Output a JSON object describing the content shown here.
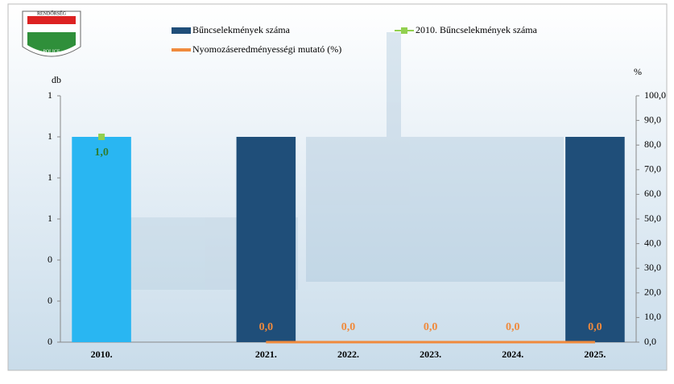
{
  "logo": {
    "top": "RENDŐRSÉG",
    "bottom": "POLICE"
  },
  "chart_data": {
    "type": "combo",
    "categories": [
      "2010.",
      null,
      "2021.",
      "2022.",
      "2023.",
      "2024.",
      "2025."
    ],
    "y_label": "db",
    "y2_label": "%",
    "ylim": [
      0,
      1.2
    ],
    "yticks": [
      0,
      {
        "value": 0.2,
        "label": "0"
      },
      {
        "value": 0.4,
        "label": "0"
      },
      {
        "value": 0.6,
        "label": "1"
      },
      {
        "value": 0.8,
        "label": "1"
      },
      1,
      {
        "value": 1.2,
        "label": "1"
      }
    ],
    "y2lim": [
      0,
      100
    ],
    "y2ticks": [
      {
        "value": 0,
        "label": "0,0"
      },
      {
        "value": 10,
        "label": "10,0"
      },
      {
        "value": 20,
        "label": "20,0"
      },
      {
        "value": 30,
        "label": "30,0"
      },
      {
        "value": 40,
        "label": "40,0"
      },
      {
        "value": 50,
        "label": "50,0"
      },
      {
        "value": 60,
        "label": "60,0"
      },
      {
        "value": 70,
        "label": "70,0"
      },
      {
        "value": 80,
        "label": "80,0"
      },
      {
        "value": 90,
        "label": "90,0"
      },
      {
        "value": 100,
        "label": "100,0"
      }
    ],
    "series": [
      {
        "name": "Bűncselekmények száma",
        "type": "bar",
        "color": "#1f4e79",
        "point_colors": [
          "#29b6f2",
          null,
          null,
          null,
          null,
          null,
          null
        ],
        "values": [
          1,
          null,
          1,
          0,
          0,
          0,
          1
        ]
      },
      {
        "name": "2010. Bűncselekmények száma",
        "type": "marker",
        "color": "#92d050",
        "values": [
          1,
          null,
          null,
          null,
          null,
          null,
          null
        ],
        "value_labels": [
          "1,0",
          null,
          null,
          null,
          null,
          null,
          null
        ]
      },
      {
        "name": "Nyomozáseredményességi mutató (%)",
        "type": "line",
        "axis": "y2",
        "color": "#f08a3c",
        "values": [
          null,
          null,
          0,
          0,
          0,
          0,
          0
        ],
        "value_labels": [
          null,
          null,
          "0,0",
          "0,0",
          "0,0",
          "0,0",
          "0,0"
        ]
      }
    ]
  }
}
